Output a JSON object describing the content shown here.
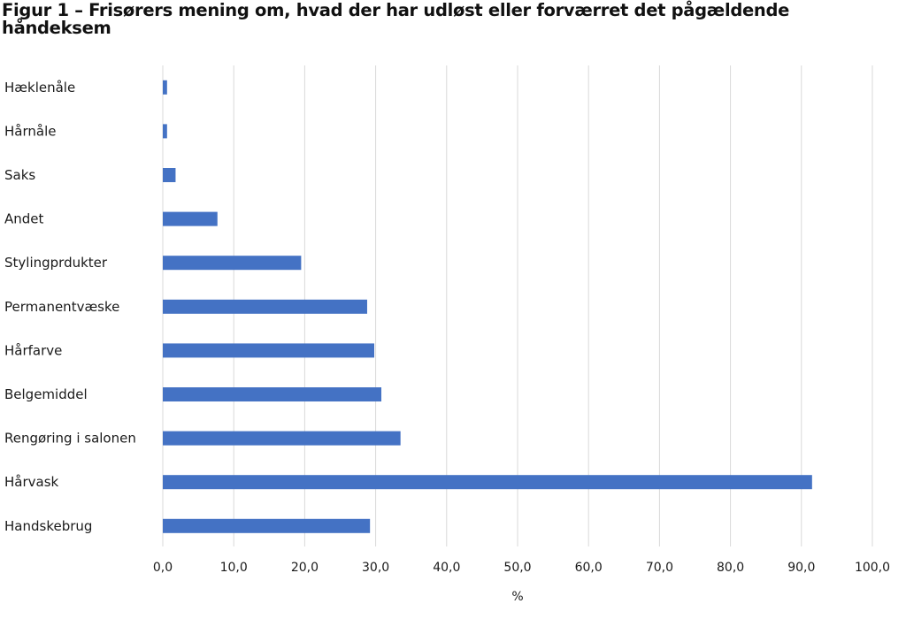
{
  "chart_data": {
    "type": "bar",
    "orientation": "horizontal",
    "title": "Figur 1 – Frisørers mening om, hvad der har udløst eller forværret det pågældende håndeksem",
    "xlabel": "%",
    "ylabel": "",
    "xlim": [
      0,
      100
    ],
    "x_ticks": [
      "0,0",
      "10,0",
      "20,0",
      "30,0",
      "40,0",
      "50,0",
      "60,0",
      "70,0",
      "80,0",
      "90,0",
      "100,0"
    ],
    "grid": "vertical",
    "legend": "none",
    "bar_color": "#4472C4",
    "categories": [
      "Hæklenåle",
      "Hårnåle",
      "Saks",
      "Andet",
      "Stylingprdukter",
      "Permanentvæske",
      "Hårfarve",
      "Belgemiddel",
      "Rengøring i salonen",
      "Hårvask",
      "Handskebrug"
    ],
    "values": [
      0.6,
      0.6,
      1.8,
      7.7,
      19.5,
      28.8,
      29.8,
      30.8,
      33.5,
      91.5,
      29.2
    ]
  }
}
